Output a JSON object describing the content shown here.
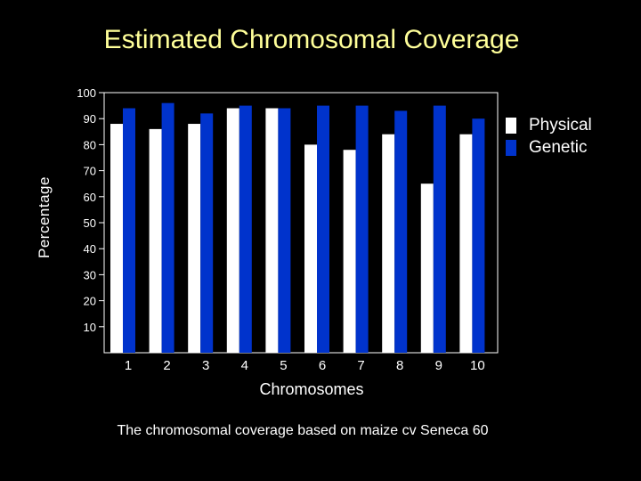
{
  "chart_data": {
    "type": "bar",
    "title": "Estimated Chromosomal Coverage",
    "xlabel": "Chromosomes",
    "ylabel": "Percentage",
    "categories": [
      "1",
      "2",
      "3",
      "4",
      "5",
      "6",
      "7",
      "8",
      "9",
      "10"
    ],
    "yticks": [
      "10",
      "20",
      "30",
      "40",
      "50",
      "60",
      "70",
      "80",
      "90",
      "100"
    ],
    "ylim": [
      0,
      100
    ],
    "legend_position": "top-right",
    "series": [
      {
        "name": "Physical",
        "color": "#ffffff",
        "values": [
          88,
          86,
          88,
          94,
          94,
          80,
          78,
          84,
          65,
          84
        ]
      },
      {
        "name": "Genetic",
        "color": "#0033cc",
        "values": [
          94,
          96,
          92,
          95,
          94,
          95,
          95,
          93,
          95,
          90
        ]
      }
    ]
  },
  "caption": "The chromosomal coverage based on maize cv Seneca 60"
}
